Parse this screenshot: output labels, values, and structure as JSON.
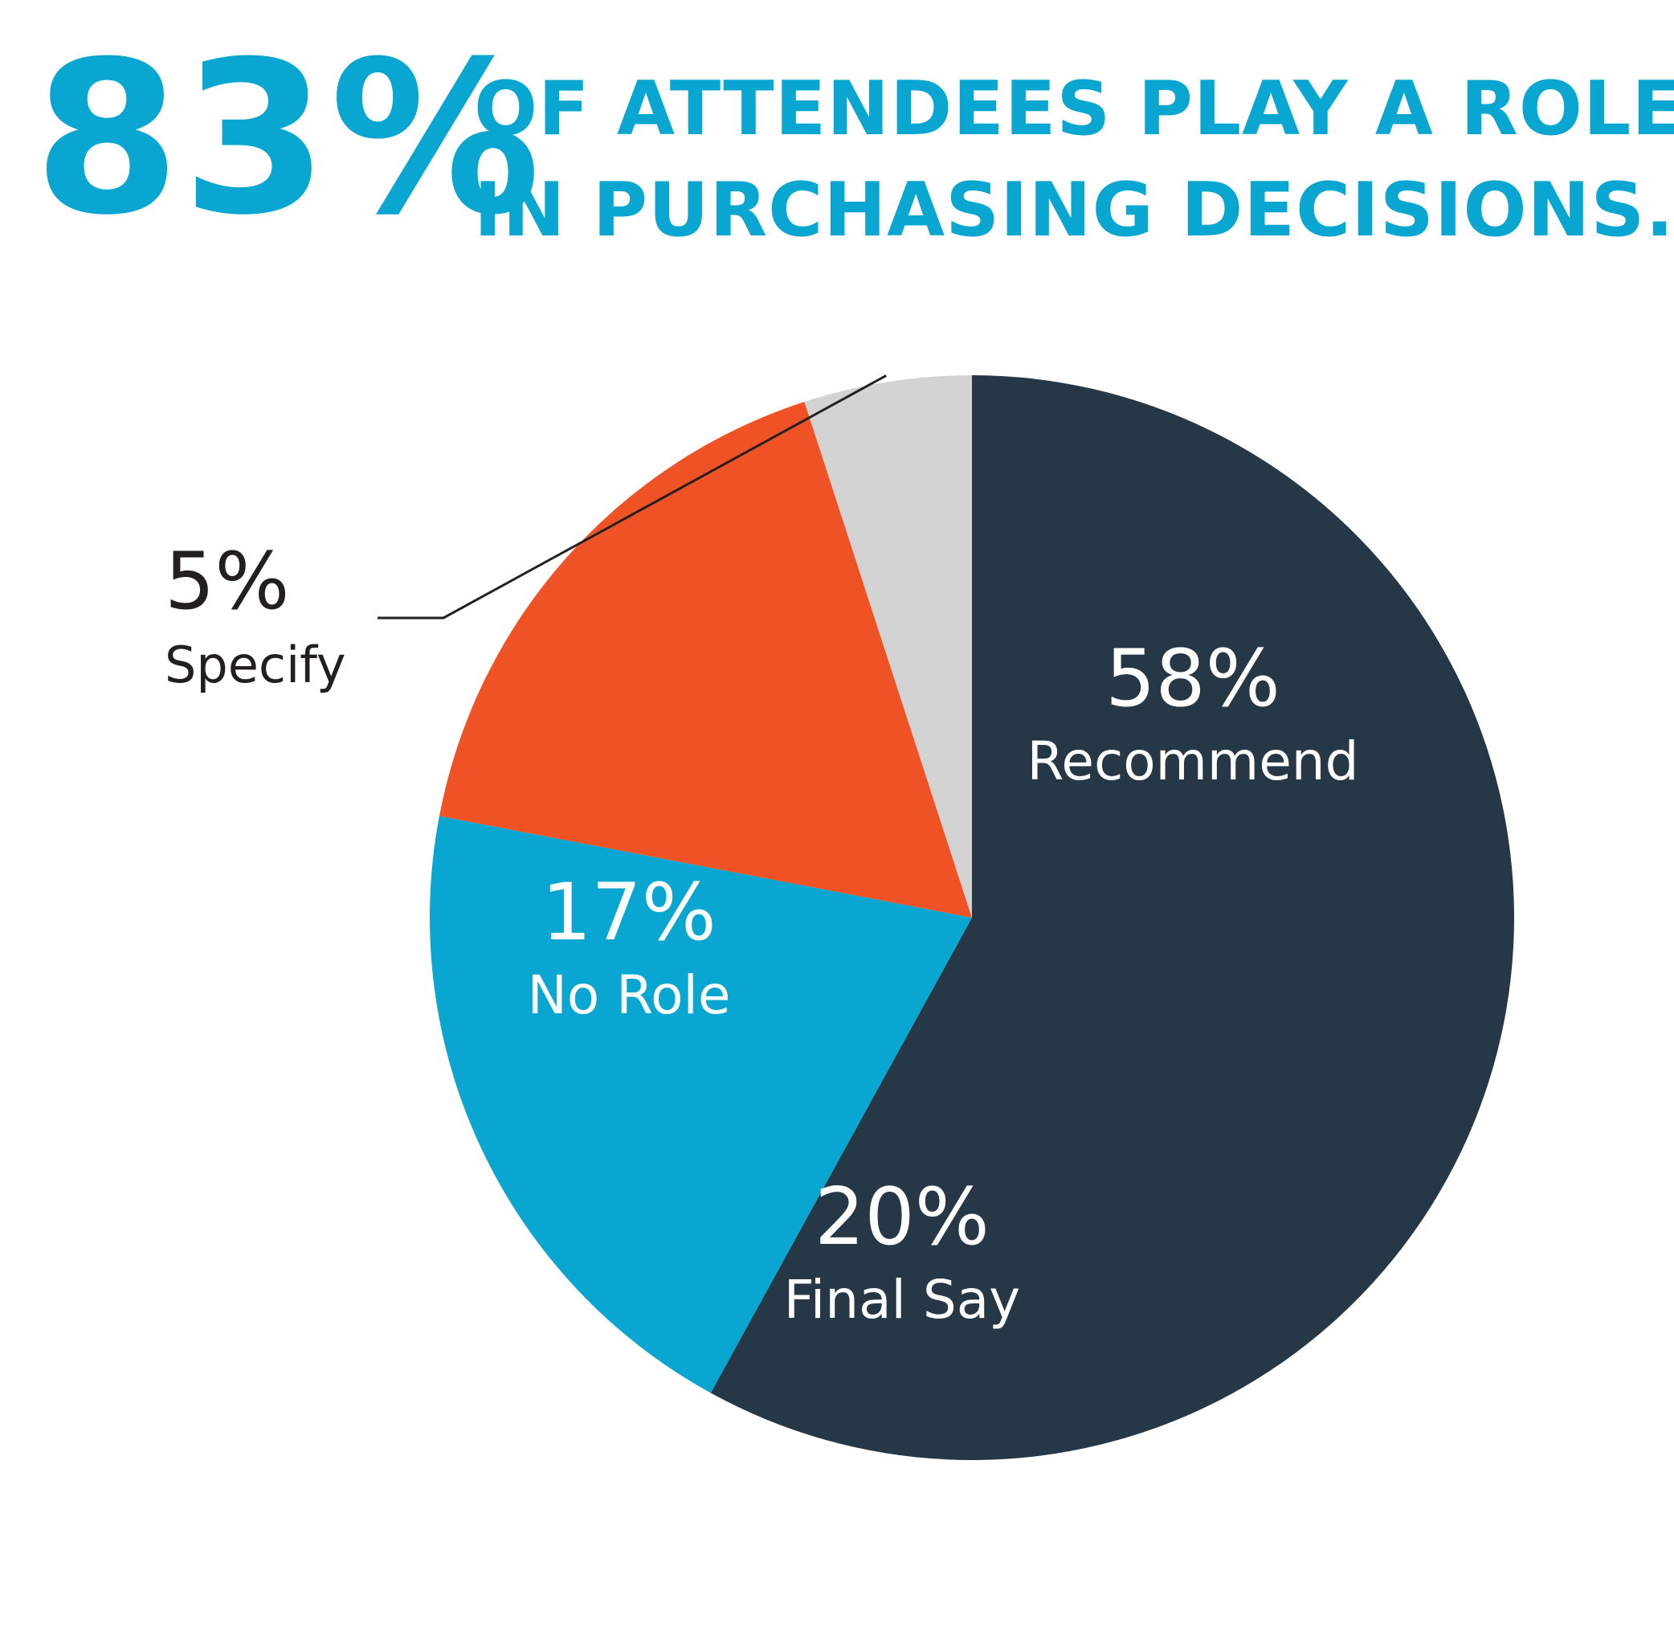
{
  "colors": {
    "accent": "#08a6d0",
    "navy": "#263746",
    "orange": "#ef5224",
    "light_gray": "#d3d3d3",
    "dark_text": "#231f20",
    "white": "#ffffff"
  },
  "headline": {
    "stat": "83%",
    "line1": "OF ATTENDEES PLAY A ROLE",
    "line2": "IN PURCHASING DECISIONS."
  },
  "chart_data": {
    "type": "pie",
    "title": "",
    "slices": [
      {
        "percent_label": "58%",
        "name": "Recommend",
        "value": 58,
        "color": "#263746",
        "label_color": "#ffffff"
      },
      {
        "percent_label": "20%",
        "name": "Final Say",
        "value": 20,
        "color": "#08a6d0",
        "label_color": "#ffffff"
      },
      {
        "percent_label": "17%",
        "name": "No Role",
        "value": 17,
        "color": "#ef5224",
        "label_color": "#ffffff"
      },
      {
        "percent_label": "5%",
        "name": "Specify",
        "value": 5,
        "color": "#d3d3d3",
        "label_color": "#231f20",
        "external_label": true
      }
    ]
  }
}
